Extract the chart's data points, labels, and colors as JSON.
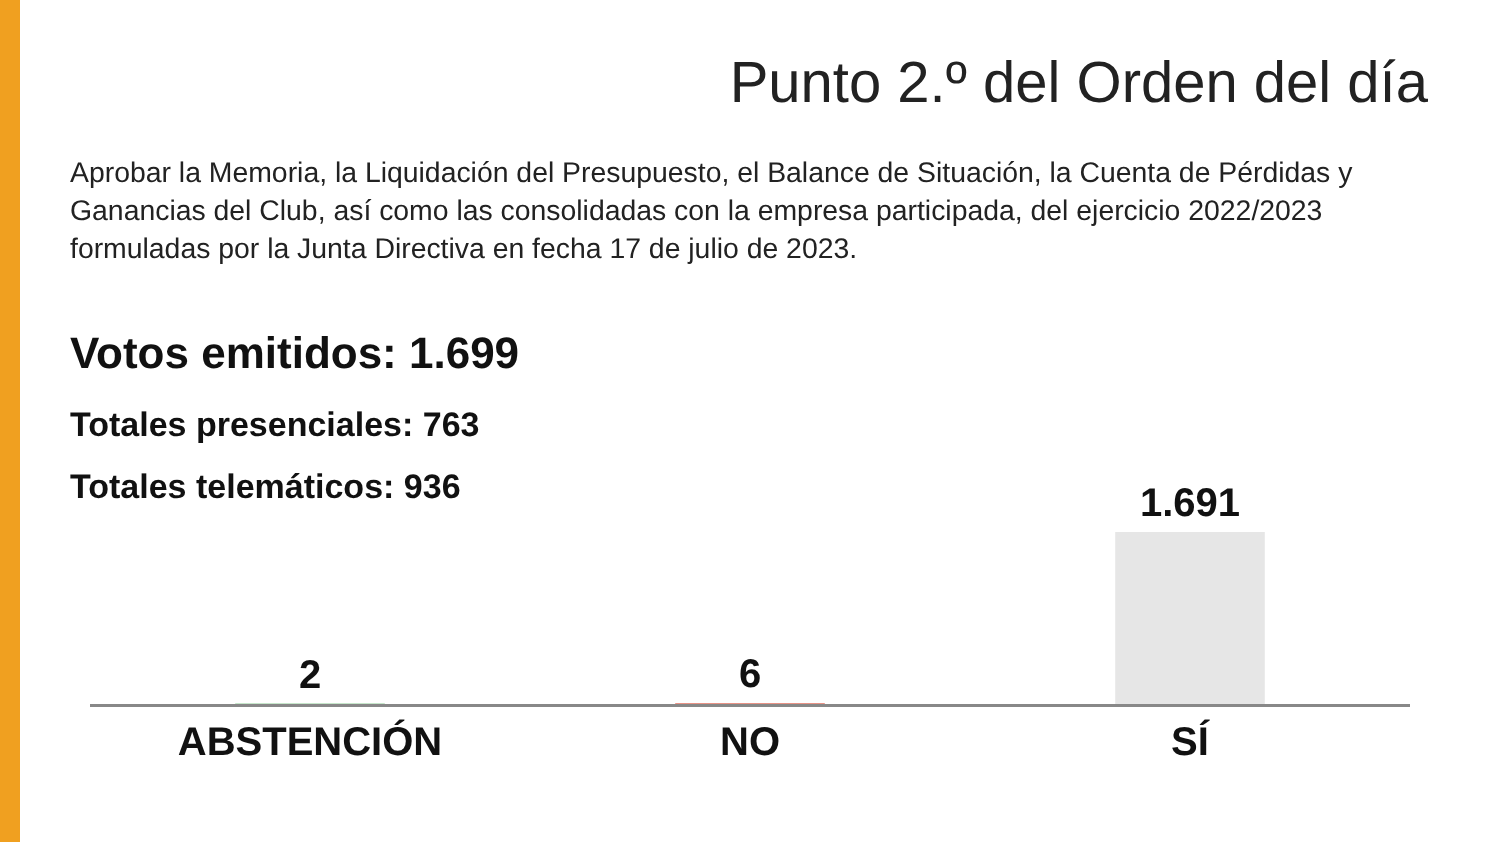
{
  "chart_data": {
    "type": "bar",
    "title": "Punto 2.º del Orden del día",
    "subtitle": "Aprobar la Memoria, la Liquidación del Presupuesto, el Balance de Situación, la Cuenta de Pérdidas y Ganancias del Club, así como las consolidadas con la empresa participada, del ejercicio 2022/2023 formuladas por la Junta Directiva en fecha 17 de julio de 2023.",
    "annotations": [
      "Votos emitidos: 1.699",
      "Totales presenciales: 763",
      "Totales telemáticos: 936"
    ],
    "categories": [
      "ABSTENCIÓN",
      "NO",
      "SÍ"
    ],
    "values": [
      2,
      6,
      1691
    ],
    "colors": [
      "#1e9a2c",
      "#d2280f",
      "#e6e6e6"
    ],
    "value_labels": [
      "2",
      "6",
      "1.691"
    ],
    "grid": false,
    "legend": false
  }
}
